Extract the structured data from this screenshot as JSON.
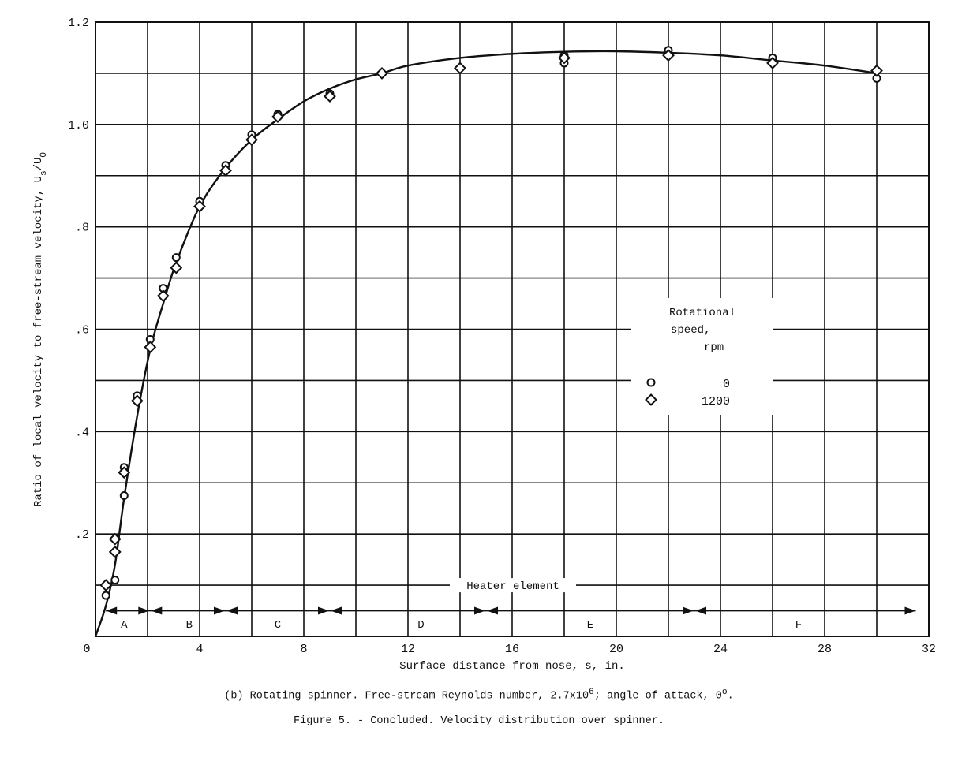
{
  "chart_data": {
    "type": "scatter",
    "title": "Figure 5. - Concluded. Velocity distribution over spinner.",
    "subtitle": "(b) Rotating spinner. Free-stream Reynolds number, 2.7x10^6; angle of attack, 0°.",
    "xlabel": "Surface distance from nose, s, in.",
    "ylabel": "Ratio of local velocity to free-stream velocity, Us/U0",
    "xlim": [
      0,
      32
    ],
    "ylim": [
      0,
      1.2
    ],
    "xticks": [
      0,
      4,
      8,
      12,
      16,
      20,
      24,
      28,
      32
    ],
    "xtick_labels": [
      "0",
      "4",
      "8",
      "12",
      "16",
      "20",
      "24",
      "28",
      "32"
    ],
    "yticks": [
      0.2,
      0.4,
      0.6,
      0.8,
      1.0,
      1.2
    ],
    "ytick_labels": [
      ".2",
      ".4",
      ".6",
      ".8",
      "1.0",
      "1.2"
    ],
    "grid": true,
    "grid_x_step": 2,
    "grid_y_step": 0.1,
    "legend": {
      "title": [
        "Rotational",
        "speed,",
        "rpm"
      ],
      "position": "right-middle",
      "entries": [
        {
          "marker": "circle",
          "label": "0"
        },
        {
          "marker": "diamond",
          "label": "1200"
        }
      ]
    },
    "series": [
      {
        "name": "0 rpm",
        "marker": "circle",
        "points": [
          [
            0.4,
            0.08
          ],
          [
            0.75,
            0.11
          ],
          [
            1.1,
            0.33
          ],
          [
            1.1,
            0.275
          ],
          [
            1.6,
            0.47
          ],
          [
            2.1,
            0.58
          ],
          [
            2.6,
            0.68
          ],
          [
            3.1,
            0.74
          ],
          [
            4.0,
            0.85
          ],
          [
            5.0,
            0.92
          ],
          [
            6.0,
            0.98
          ],
          [
            7.0,
            1.02
          ],
          [
            9.0,
            1.06
          ],
          [
            11.0,
            1.1
          ],
          [
            14.0,
            1.11
          ],
          [
            18.0,
            1.135
          ],
          [
            18.0,
            1.12
          ],
          [
            22.0,
            1.145
          ],
          [
            26.0,
            1.13
          ],
          [
            30.0,
            1.09
          ]
        ]
      },
      {
        "name": "1200 rpm",
        "marker": "diamond",
        "points": [
          [
            0.4,
            0.1
          ],
          [
            0.75,
            0.19
          ],
          [
            0.75,
            0.165
          ],
          [
            1.1,
            0.32
          ],
          [
            1.6,
            0.46
          ],
          [
            2.1,
            0.565
          ],
          [
            2.6,
            0.665
          ],
          [
            3.1,
            0.72
          ],
          [
            4.0,
            0.84
          ],
          [
            5.0,
            0.91
          ],
          [
            6.0,
            0.97
          ],
          [
            7.0,
            1.015
          ],
          [
            9.0,
            1.055
          ],
          [
            11.0,
            1.1
          ],
          [
            14.0,
            1.11
          ],
          [
            18.0,
            1.13
          ],
          [
            22.0,
            1.135
          ],
          [
            26.0,
            1.12
          ],
          [
            30.0,
            1.105
          ]
        ]
      },
      {
        "name": "faired curve",
        "type": "line",
        "points": [
          [
            0.0,
            0.0
          ],
          [
            0.4,
            0.06
          ],
          [
            0.75,
            0.14
          ],
          [
            1.1,
            0.27
          ],
          [
            1.6,
            0.43
          ],
          [
            2.1,
            0.56
          ],
          [
            2.6,
            0.65
          ],
          [
            3.1,
            0.73
          ],
          [
            4.0,
            0.84
          ],
          [
            5.0,
            0.915
          ],
          [
            6.0,
            0.97
          ],
          [
            7.0,
            1.01
          ],
          [
            8.0,
            1.045
          ],
          [
            9.0,
            1.07
          ],
          [
            10.0,
            1.088
          ],
          [
            11.0,
            1.1
          ],
          [
            12.0,
            1.115
          ],
          [
            14.0,
            1.13
          ],
          [
            16.0,
            1.138
          ],
          [
            18.0,
            1.142
          ],
          [
            20.0,
            1.143
          ],
          [
            22.0,
            1.14
          ],
          [
            24.0,
            1.135
          ],
          [
            26.0,
            1.125
          ],
          [
            28.0,
            1.115
          ],
          [
            30.0,
            1.1
          ]
        ]
      }
    ],
    "annotations": {
      "heater_label": "Heater element",
      "heater_line_y": 0.1,
      "segment_line_y": 0.05,
      "segment_boundaries": [
        0.4,
        2.1,
        5.0,
        9.0,
        15.0,
        23.0,
        31.5
      ],
      "segments": [
        {
          "label": "A",
          "x": 1.1
        },
        {
          "label": "B",
          "x": 3.6
        },
        {
          "label": "C",
          "x": 7.0
        },
        {
          "label": "D",
          "x": 12.5
        },
        {
          "label": "E",
          "x": 19.0
        },
        {
          "label": "F",
          "x": 27.0
        }
      ]
    }
  },
  "captions": {
    "subfigure": "(b) Rotating spinner.  Free-stream Reynolds number, 2.7x10",
    "subfigure_sup": "6",
    "subfigure_tail": "; angle of attack, 0",
    "subfigure_deg": "o",
    "subfigure_end": ".",
    "figure": "Figure 5. - Concluded.  Velocity distribution over spinner."
  }
}
